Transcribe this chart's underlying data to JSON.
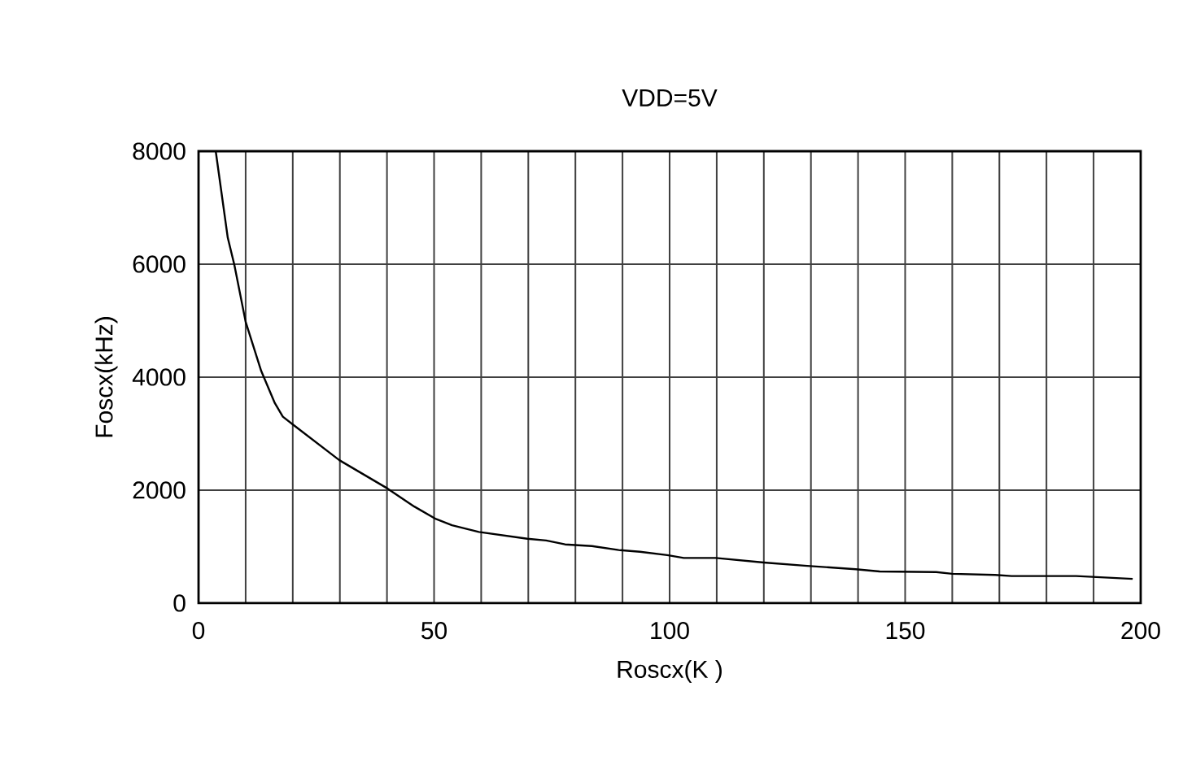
{
  "chart_data": {
    "type": "line",
    "title": "VDD=5V",
    "xlabel": "Roscx(K   )",
    "ylabel": "Foscx(kHz)",
    "x": [
      3.65,
      6.2,
      7.6,
      10,
      13.3,
      16.2,
      17.9,
      20.2,
      29.9,
      40.1,
      45.8,
      50.4,
      53.8,
      59.5,
      69.8,
      73.8,
      77.8,
      83.5,
      89.2,
      93.7,
      99.5,
      103,
      109.8,
      120,
      129.2,
      139.5,
      144.6,
      156.6,
      160,
      169.1,
      172.6,
      186.3,
      198.3
    ],
    "series": [
      {
        "color": "#000000",
        "values": [
          8000,
          6470,
          5990,
          4980,
          4110,
          3540,
          3300,
          3150,
          2530,
          2030,
          1710,
          1490,
          1380,
          1260,
          1140,
          1110,
          1040,
          1010,
          940,
          910,
          850,
          800,
          800,
          720,
          660,
          600,
          560,
          550,
          520,
          500,
          480,
          480,
          430
        ]
      }
    ],
    "xlim": [
      0,
      200
    ],
    "ylim": [
      0,
      8000
    ],
    "xticks": [
      0,
      {
        "value": 10,
        "label": null
      },
      {
        "value": 20,
        "label": null
      },
      {
        "value": 30,
        "label": null
      },
      {
        "value": 40,
        "label": null
      },
      50,
      {
        "value": 60,
        "label": null
      },
      {
        "value": 70,
        "label": null
      },
      {
        "value": 80,
        "label": null
      },
      {
        "value": 90,
        "label": null
      },
      100,
      {
        "value": 110,
        "label": null
      },
      {
        "value": 120,
        "label": null
      },
      {
        "value": 130,
        "label": null
      },
      {
        "value": 140,
        "label": null
      },
      150,
      {
        "value": 160,
        "label": null
      },
      {
        "value": 170,
        "label": null
      },
      {
        "value": 180,
        "label": null
      },
      {
        "value": 190,
        "label": null
      },
      200
    ],
    "yticks": [
      0,
      2000,
      4000,
      6000,
      8000
    ],
    "grid": true,
    "marker": "none",
    "line_style": "solid"
  }
}
